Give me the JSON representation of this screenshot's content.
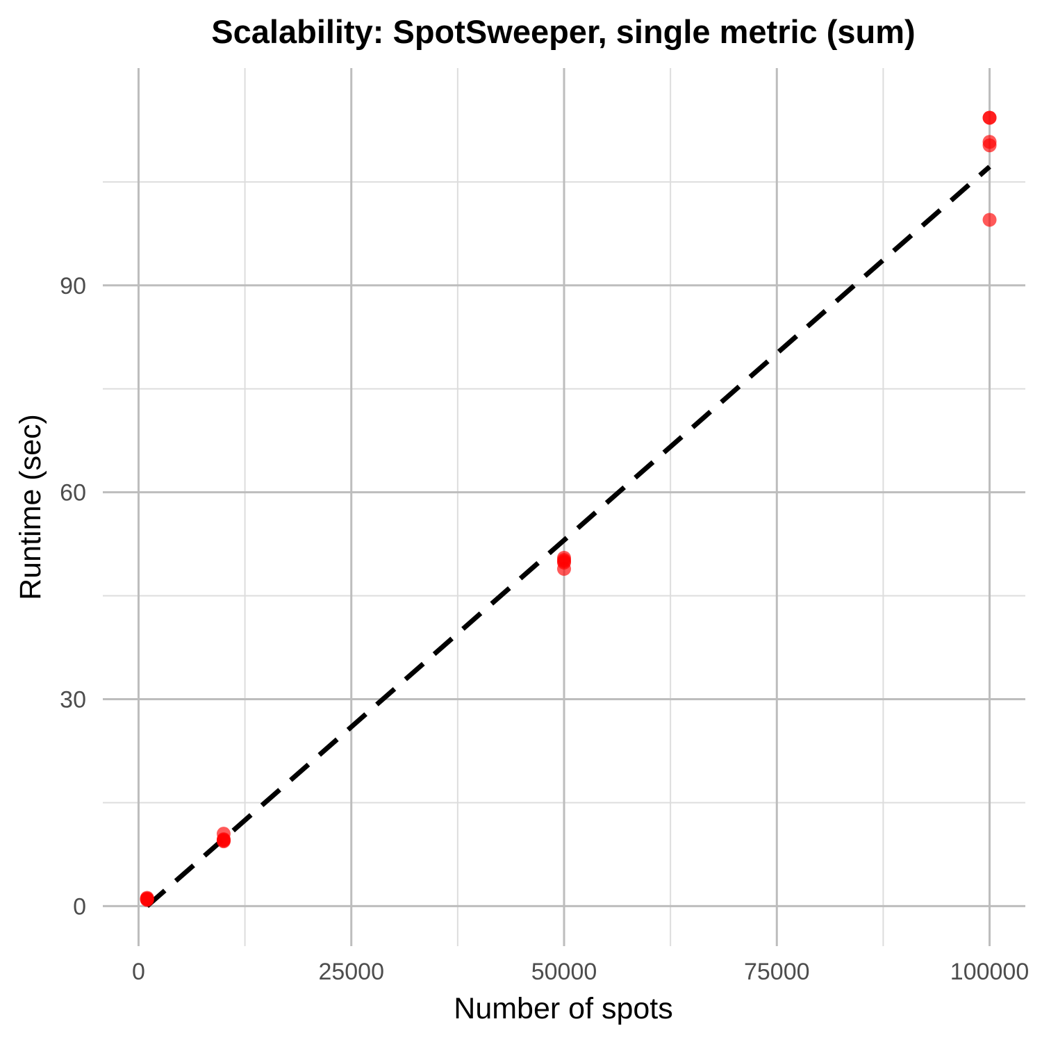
{
  "chart_data": {
    "type": "scatter",
    "title": "Scalability: SpotSweeper, single metric (sum)",
    "xlabel": "Number of spots",
    "ylabel": "Runtime (sec)",
    "xlim": [
      -4200,
      104200
    ],
    "ylim": [
      -5.8,
      121.5
    ],
    "xticks": [
      0,
      25000,
      50000,
      75000,
      100000
    ],
    "xtick_labels": [
      "0",
      "25000",
      "50000",
      "75000",
      "100000"
    ],
    "yticks": [
      0,
      30,
      60,
      90
    ],
    "ytick_labels": [
      "0",
      "30",
      "60",
      "90"
    ],
    "x_minor": [
      12500,
      37500,
      62500,
      87500
    ],
    "y_minor": [
      15,
      45,
      75,
      105
    ],
    "grid": true,
    "legend": "none",
    "point_color": "#ff0000",
    "line_color": "#000000",
    "series": [
      {
        "kind": "points",
        "x": [
          1000,
          1000,
          1000,
          1000,
          1000,
          10000,
          10000,
          10000,
          10000,
          10000,
          50000,
          50000,
          50000,
          50000,
          50000,
          100000,
          100000,
          100000,
          100000,
          100000
        ],
        "y": [
          1.0,
          1.1,
          0.9,
          1.2,
          1.0,
          10.5,
          9.6,
          9.5,
          9.7,
          9.4,
          50.5,
          50.0,
          49.8,
          50.2,
          48.9,
          114.3,
          114.3,
          110.8,
          110.3,
          99.5
        ]
      },
      {
        "kind": "fit-line",
        "style": "dashed",
        "x": [
          1000,
          100000
        ],
        "y": [
          0.0,
          107.2
        ]
      }
    ]
  }
}
